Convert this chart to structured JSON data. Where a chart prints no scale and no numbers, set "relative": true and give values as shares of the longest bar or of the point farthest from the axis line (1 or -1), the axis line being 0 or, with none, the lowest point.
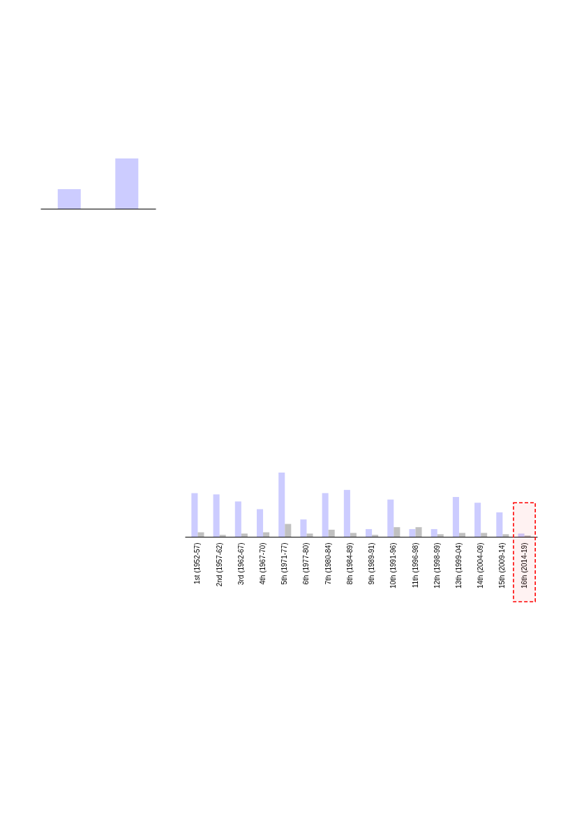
{
  "chart_data": [
    {
      "type": "bar",
      "categories": [
        null,
        null
      ],
      "relative": true,
      "tick_labels": false,
      "series": [
        {
          "color": "#ccccff",
          "values": [
            0.39,
            1
          ]
        }
      ]
    },
    {
      "type": "bar",
      "relative": true,
      "tick_labels": "x",
      "categories": [
        "1st (1952-57)",
        "2nd (1957-62)",
        "3rd (1962-67)",
        "4th (1967-70)",
        "5th (1971-77)",
        "6th (1977-80)",
        "7th (1980-84)",
        "8th (1984-89)",
        "9th (1989-91)",
        "10th (1991-96)",
        "11th (1996-98)",
        "12th (1998-99)",
        "13th (1999-04)",
        "14th (2004-09)",
        "15th (2009-14)",
        "16th (2014-19)"
      ],
      "series": [
        {
          "color": "#ccccff",
          "values": [
            0.68,
            0.66,
            0.55,
            0.43,
            1,
            0.27,
            0.68,
            0.73,
            0.12,
            0.58,
            0.12,
            0.12,
            0.62,
            0.53,
            0.38,
            0.05
          ]
        },
        {
          "color": "#c0c0c0",
          "values": [
            0.07,
            0.03,
            0.05,
            0.07,
            0.2,
            0.05,
            0.11,
            0.06,
            0.03,
            0.15,
            0.15,
            0.04,
            0.06,
            0.06,
            0.04,
            0.02
          ]
        }
      ],
      "bands": [
        {
          "axis": "x",
          "from": "16th (2014-19)",
          "to": "16th (2014-19)",
          "color": "#ff0000"
        }
      ]
    }
  ]
}
